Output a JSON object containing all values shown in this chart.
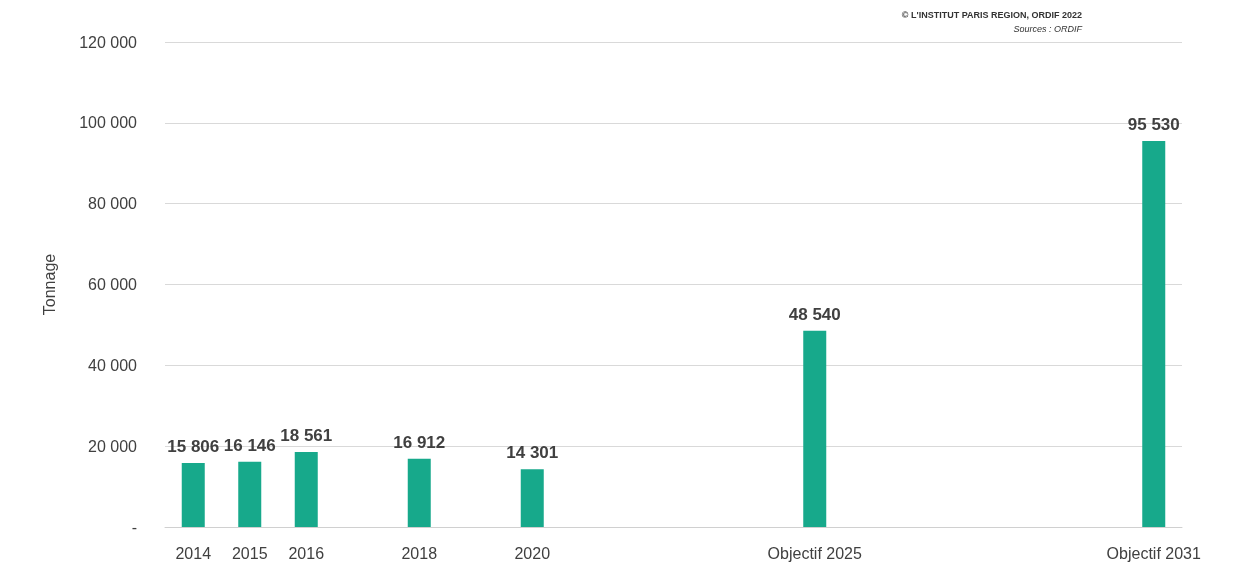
{
  "chart_data": {
    "type": "bar",
    "ylabel": "Tonnage",
    "categories": [
      "2014",
      "2015",
      "2016",
      null,
      "2018",
      null,
      "2020",
      null,
      null,
      null,
      null,
      "Objectif 2025",
      null,
      null,
      null,
      null,
      null,
      "Objectif 2031"
    ],
    "series": [
      {
        "color": "#17a98b",
        "values": [
          15806,
          16146,
          18561,
          null,
          16912,
          null,
          14301,
          null,
          null,
          null,
          null,
          48540,
          null,
          null,
          null,
          null,
          null,
          95530
        ],
        "value_labels": [
          "15 806",
          "16 146",
          "18 561",
          null,
          "16 912",
          null,
          "14 301",
          null,
          null,
          null,
          null,
          "48 540",
          null,
          null,
          null,
          null,
          null,
          "95 530"
        ]
      }
    ],
    "ylim": [
      0,
      120000
    ],
    "yticks": [
      {
        "value": 0,
        "label": "-"
      },
      {
        "value": 20000,
        "label": "20 000"
      },
      {
        "value": 40000,
        "label": "40 000"
      },
      {
        "value": 60000,
        "label": "60 000"
      },
      {
        "value": 80000,
        "label": "80 000"
      },
      {
        "value": 100000,
        "label": "100 000"
      },
      {
        "value": 120000,
        "label": "120 000"
      }
    ],
    "grid": "y",
    "annotations": [
      "© L'INSTITUT PARIS REGION, ORDIF 2022",
      "Sources : ORDIF"
    ]
  }
}
